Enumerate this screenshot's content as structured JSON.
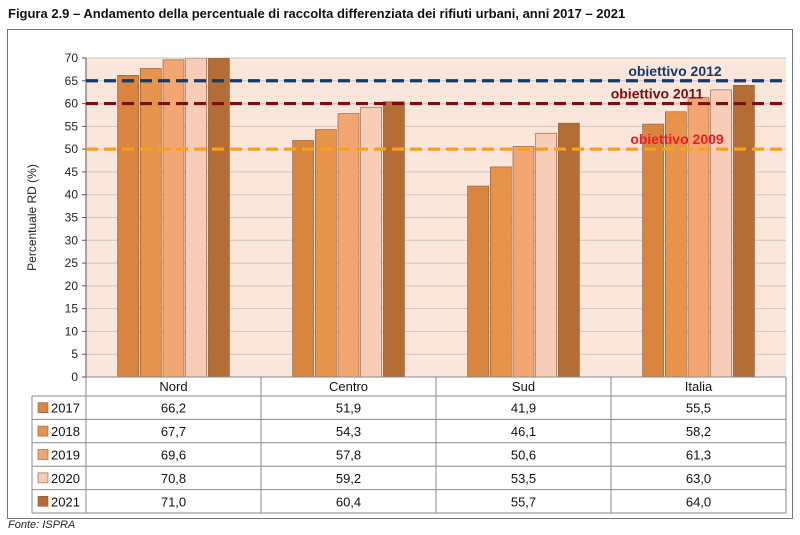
{
  "figure": {
    "title": "Figura 2.9 – Andamento della percentuale di raccolta differenziata dei rifiuti urbani, anni 2017 – 2021",
    "source": "Fonte: ISPRA"
  },
  "colors": {
    "plot_background": "#fbe6dc",
    "gridline": "#c6c6c6",
    "series": [
      "#d9853f",
      "#e8934b",
      "#f4a672",
      "#f8cdb7",
      "#b36d35"
    ],
    "lines": [
      "#163a67",
      "#7b0f10",
      "#f7a11a"
    ],
    "line_labels": [
      "#163a67",
      "#7b0f10",
      "#ee1b24"
    ]
  },
  "chart_data": {
    "type": "bar",
    "title": "",
    "xlabel": "",
    "ylabel": "Percentuale RD (%)",
    "ylim": [
      0,
      70
    ],
    "yticks": [
      "0",
      "5",
      "10",
      "15",
      "20",
      "25",
      "30",
      "35",
      "40",
      "45",
      "50",
      "55",
      "60",
      "65",
      "70"
    ],
    "grid": true,
    "categories": [
      "Nord",
      "Centro",
      "Sud",
      "Italia"
    ],
    "series": [
      {
        "name": "2017",
        "values": [
          66.2,
          51.9,
          41.9,
          55.5
        ],
        "labels": [
          "66,2",
          "51,9",
          "41,9",
          "55,5"
        ]
      },
      {
        "name": "2018",
        "values": [
          67.7,
          54.3,
          46.1,
          58.2
        ],
        "labels": [
          "67,7",
          "54,3",
          "46,1",
          "58,2"
        ]
      },
      {
        "name": "2019",
        "values": [
          69.6,
          57.8,
          50.6,
          61.3
        ],
        "labels": [
          "69,6",
          "57,8",
          "50,6",
          "61,3"
        ]
      },
      {
        "name": "2020",
        "values": [
          70.8,
          59.2,
          53.5,
          63.0
        ],
        "labels": [
          "70,8",
          "59,2",
          "53,5",
          "63,0"
        ]
      },
      {
        "name": "2021",
        "values": [
          71.0,
          60.4,
          55.7,
          64.0
        ],
        "labels": [
          "71,0",
          "60,4",
          "55,7",
          "64,0"
        ]
      }
    ],
    "reference_lines": [
      {
        "label": "obiettivo 2012",
        "value": 65
      },
      {
        "label": "obiettivo 2011",
        "value": 60
      },
      {
        "label": "obiettivo 2009",
        "value": 50
      }
    ],
    "legend_placement": "data table below chart"
  }
}
